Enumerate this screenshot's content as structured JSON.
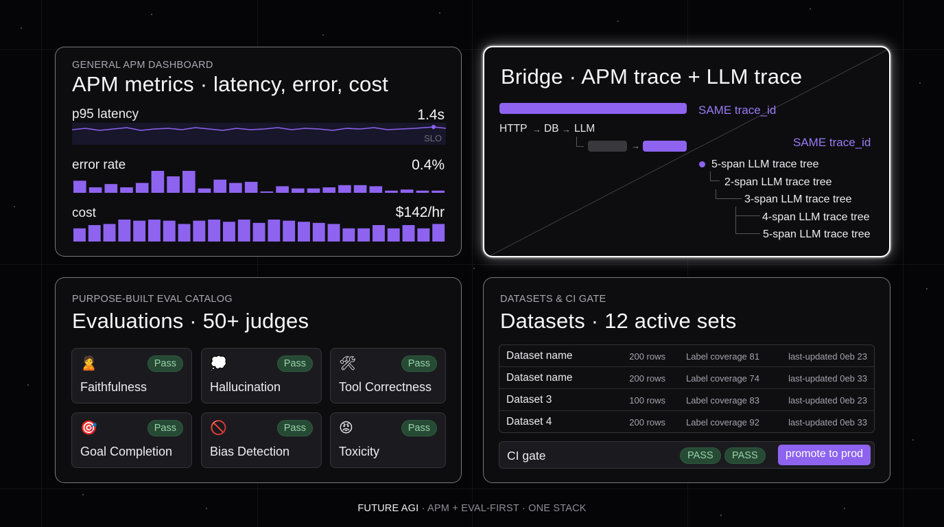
{
  "apm": {
    "kicker": "GENERAL APM DASHBOARD",
    "title": "APM metrics · latency, error, cost",
    "latency": {
      "label": "p95 latency",
      "value": "1.4s",
      "slo_label": "SLO"
    },
    "error": {
      "label": "error rate",
      "value": "0.4%",
      "bars": [
        0.55,
        0.25,
        0.4,
        0.25,
        0.45,
        1.0,
        0.75,
        1.0,
        0.2,
        0.6,
        0.45,
        0.5,
        0.0,
        0.3,
        0.2,
        0.2,
        0.25,
        0.35,
        0.35,
        0.3,
        0.1,
        0.15,
        0.1,
        0.1
      ]
    },
    "cost": {
      "label": "cost",
      "value": "$142/hr",
      "bars": [
        0.6,
        0.75,
        0.8,
        1.0,
        0.95,
        1.0,
        0.95,
        0.8,
        0.95,
        1.0,
        0.9,
        1.0,
        0.85,
        1.0,
        0.95,
        0.9,
        0.85,
        0.8,
        0.6,
        0.6,
        0.75,
        0.6,
        0.75,
        0.6,
        0.8
      ]
    },
    "colors": {
      "accent": "#8e63f0"
    }
  },
  "bridge": {
    "title": "Bridge · APM trace + LLM trace",
    "same_trace_1": "SAME trace_id",
    "same_trace_2": "SAME trace_id",
    "path_http": "HTTP",
    "path_db": "DB",
    "path_llm": "LLM",
    "tree": [
      "5-span LLM trace tree",
      "2-span LLM trace tree",
      "3-span LLM trace tree",
      "4-span LLM trace tree",
      "5-span LLM trace tree"
    ]
  },
  "evals": {
    "kicker": "PURPOSE-BUILT EVAL CATALOG",
    "title": "Evaluations ·  50+ judges",
    "items": [
      {
        "name": "Faithfulness",
        "status": "Pass",
        "icon": "🙎"
      },
      {
        "name": "Hallucination",
        "status": "Pass",
        "icon": "💭"
      },
      {
        "name": "Tool Correctness",
        "status": "Pass",
        "icon": "🛠"
      },
      {
        "name": "Goal Completion",
        "status": "Pass",
        "icon": "🎯"
      },
      {
        "name": "Bias Detection",
        "status": "Pass",
        "icon": "🚫"
      },
      {
        "name": "Toxicity",
        "status": "Pass",
        "icon": "😡"
      }
    ]
  },
  "datasets": {
    "kicker": "DATASETS & CI GATE",
    "title": "Datasets · 12 active sets",
    "rows": [
      {
        "name": "Dataset name",
        "rows": "200 rows",
        "coverage": "Label coverage 81",
        "updated": "last-updated 0eb 23"
      },
      {
        "name": "Dataset name",
        "rows": "200 rows",
        "coverage": "Label coverage 74",
        "updated": "last-updated 0eb 33"
      },
      {
        "name": "Dataset 3",
        "rows": "100 rows",
        "coverage": "Label coverage 83",
        "updated": "last-updated 0eb 23"
      },
      {
        "name": "Dataset 4",
        "rows": "200 rows",
        "coverage": "Label coverage 92",
        "updated": "last-updated 0eb 33"
      }
    ],
    "ci": {
      "label": "CI gate",
      "pass_1": "PASS",
      "pass_2": "PASS",
      "promote": "promote to prod"
    }
  },
  "footer": {
    "brand": "FUTURE AGI",
    "rest": " · APM + EVAL-FIRST · ONE STACK"
  }
}
